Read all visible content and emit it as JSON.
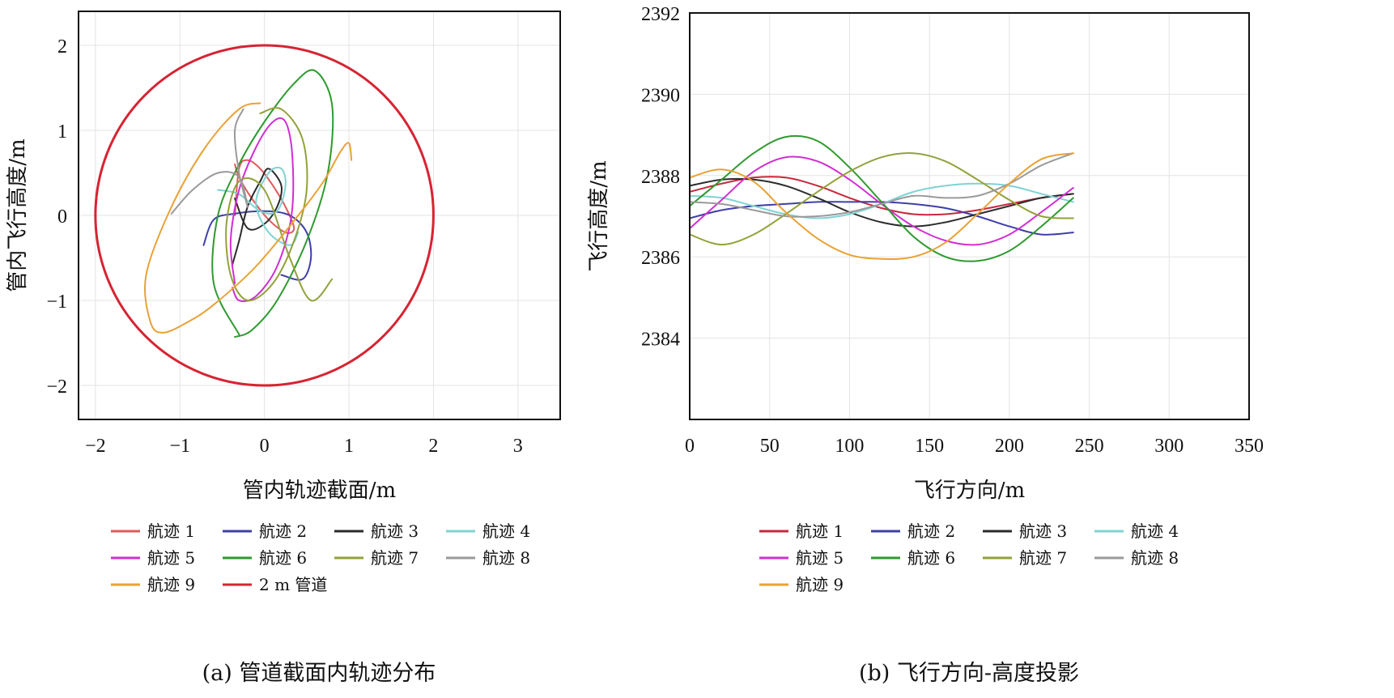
{
  "chart_data": [
    {
      "type": "line",
      "caption": "(a) 管道截面内轨迹分布",
      "xlabel": "管内轨迹截面/m",
      "ylabel": "管内飞行高度/m",
      "xlim": [
        -2.2,
        3.5
      ],
      "ylim": [
        -2.4,
        2.4
      ],
      "xticks": [
        -2,
        -1,
        0,
        1,
        2,
        3
      ],
      "yticks": [
        -2,
        -1,
        0,
        1,
        2
      ],
      "grid": true,
      "legend_position": "bottom",
      "legend": [
        "航迹 1",
        "航迹 2",
        "航迹 3",
        "航迹 4",
        "航迹 5",
        "航迹 6",
        "航迹 7",
        "航迹 8",
        "航迹 9",
        "2 m 管道"
      ],
      "series": [
        {
          "name": "航迹 1",
          "color": "#e05a5a",
          "x": [
            -0.35,
            -0.3,
            -0.2,
            -0.05,
            0.1,
            0.25,
            0.35,
            0.25,
            0.05,
            -0.15,
            -0.3,
            -0.35
          ],
          "y": [
            0.0,
            0.55,
            0.65,
            0.55,
            0.35,
            0.1,
            -0.15,
            -0.2,
            -0.05,
            0.2,
            0.45,
            0.6
          ]
        },
        {
          "name": "航迹 2",
          "color": "#3f3fa8",
          "x": [
            -0.72,
            -0.6,
            -0.35,
            0.0,
            0.3,
            0.5,
            0.55,
            0.45,
            0.2
          ],
          "y": [
            -0.35,
            -0.05,
            0.02,
            0.05,
            0.0,
            -0.2,
            -0.5,
            -0.75,
            -0.7
          ]
        },
        {
          "name": "航迹 3",
          "color": "#2b2b2b",
          "x": [
            -0.38,
            -0.3,
            -0.2,
            -0.05,
            0.05,
            0.2,
            0.15,
            0.0,
            -0.2,
            -0.35
          ],
          "y": [
            -0.58,
            -0.3,
            0.1,
            0.4,
            0.55,
            0.35,
            0.1,
            -0.1,
            -0.15,
            0.2
          ]
        },
        {
          "name": "航迹 4",
          "color": "#7fd3d3",
          "x": [
            -0.55,
            -0.3,
            -0.05,
            0.15,
            0.25,
            0.2,
            0.05,
            -0.1,
            0.05,
            0.3,
            0.4
          ],
          "y": [
            0.3,
            0.25,
            0.05,
            0.05,
            0.35,
            0.55,
            0.5,
            0.15,
            -0.2,
            -0.35,
            -0.2
          ]
        },
        {
          "name": "航迹 5",
          "color": "#d12fd1",
          "x": [
            -0.35,
            -0.4,
            -0.3,
            -0.1,
            0.1,
            0.25,
            0.33,
            0.32,
            0.15,
            -0.1,
            -0.3,
            -0.38
          ],
          "y": [
            -0.8,
            -0.3,
            0.3,
            0.8,
            1.1,
            1.1,
            0.7,
            0.0,
            -0.6,
            -0.95,
            -1.0,
            -0.85
          ]
        },
        {
          "name": "航迹 6",
          "color": "#2e9a2e",
          "x": [
            -0.3,
            -0.6,
            -0.55,
            -0.3,
            0.0,
            0.35,
            0.6,
            0.8,
            0.75,
            0.5,
            0.15,
            -0.15,
            -0.35
          ],
          "y": [
            -1.4,
            -0.8,
            0.0,
            0.6,
            1.1,
            1.55,
            1.7,
            1.3,
            0.5,
            -0.3,
            -1.0,
            -1.35,
            -1.43
          ]
        },
        {
          "name": "航迹 7",
          "color": "#93a13a",
          "x": [
            -0.05,
            0.2,
            0.45,
            0.5,
            0.35,
            0.1,
            -0.2,
            -0.4,
            -0.45,
            -0.3,
            0.0,
            0.3,
            0.55,
            0.8
          ],
          "y": [
            1.2,
            1.25,
            0.9,
            0.3,
            -0.3,
            -0.8,
            -1.0,
            -0.7,
            -0.1,
            0.4,
            0.3,
            -0.5,
            -1.0,
            -0.75
          ]
        },
        {
          "name": "航迹 8",
          "color": "#9a9a9a",
          "x": [
            -1.1,
            -0.85,
            -0.55,
            -0.3,
            -0.2,
            -0.3,
            -0.35,
            -0.25
          ],
          "y": [
            0.02,
            0.3,
            0.5,
            0.45,
            0.1,
            0.5,
            1.0,
            1.25
          ]
        },
        {
          "name": "航迹 9",
          "color": "#e8a236",
          "x": [
            -0.05,
            -0.3,
            -0.7,
            -1.1,
            -1.4,
            -1.35,
            -1.2,
            -0.9,
            -0.6,
            -0.1,
            0.4,
            0.7,
            0.9,
            1.0,
            1.03
          ],
          "y": [
            1.32,
            1.25,
            0.8,
            0.1,
            -0.7,
            -1.25,
            -1.38,
            -1.25,
            -1.05,
            -0.6,
            0.0,
            0.4,
            0.75,
            0.85,
            0.65
          ]
        },
        {
          "name": "2 m 管道",
          "color": "#d62433",
          "shape": "circle",
          "radius": 2
        }
      ]
    },
    {
      "type": "line",
      "caption": "(b) 飞行方向-高度投影",
      "xlabel": "飞行方向/m",
      "ylabel": "飞行高度/m",
      "xlim": [
        0,
        350
      ],
      "ylim": [
        2382,
        2392
      ],
      "xticks": [
        0,
        50,
        100,
        150,
        200,
        250,
        300,
        350
      ],
      "yticks": [
        2384,
        2386,
        2388,
        2390,
        2392
      ],
      "grid": true,
      "legend_position": "bottom",
      "legend": [
        "航迹 1",
        "航迹 2",
        "航迹 3",
        "航迹 4",
        "航迹 5",
        "航迹 6",
        "航迹 7",
        "航迹 8",
        "航迹 9"
      ],
      "x": [
        0,
        20,
        40,
        60,
        80,
        100,
        120,
        140,
        160,
        180,
        200,
        220,
        240
      ],
      "series": [
        {
          "name": "航迹 1",
          "color": "#c8283a",
          "values": [
            2387.6,
            2387.8,
            2387.95,
            2387.95,
            2387.75,
            2387.45,
            2387.2,
            2387.05,
            2387.05,
            2387.15,
            2387.3,
            2387.45,
            2387.55
          ]
        },
        {
          "name": "航迹 2",
          "color": "#3f3fa8",
          "values": [
            2386.95,
            2387.15,
            2387.25,
            2387.3,
            2387.35,
            2387.35,
            2387.35,
            2387.3,
            2387.2,
            2387.0,
            2386.75,
            2386.55,
            2386.6
          ]
        },
        {
          "name": "航迹 3",
          "color": "#2b2b2b",
          "values": [
            2387.75,
            2387.9,
            2387.9,
            2387.75,
            2387.45,
            2387.1,
            2386.85,
            2386.75,
            2386.85,
            2387.05,
            2387.25,
            2387.45,
            2387.55
          ]
        },
        {
          "name": "航迹 4",
          "color": "#7fd3d3",
          "values": [
            2387.5,
            2387.45,
            2387.25,
            2387.05,
            2386.95,
            2387.05,
            2387.3,
            2387.6,
            2387.75,
            2387.8,
            2387.75,
            2387.55,
            2387.35
          ]
        },
        {
          "name": "航迹 5",
          "color": "#d12fd1",
          "values": [
            2386.7,
            2387.4,
            2388.1,
            2388.45,
            2388.35,
            2387.9,
            2387.3,
            2386.75,
            2386.4,
            2386.3,
            2386.55,
            2387.1,
            2387.7
          ]
        },
        {
          "name": "航迹 6",
          "color": "#2e9a2e",
          "values": [
            2387.25,
            2387.9,
            2388.55,
            2388.95,
            2388.85,
            2388.2,
            2387.35,
            2386.5,
            2386.0,
            2385.9,
            2386.15,
            2386.75,
            2387.45
          ]
        },
        {
          "name": "航迹 7",
          "color": "#93a13a",
          "values": [
            2386.55,
            2386.3,
            2386.55,
            2387.05,
            2387.6,
            2388.1,
            2388.45,
            2388.55,
            2388.35,
            2387.9,
            2387.4,
            2387.0,
            2386.95
          ]
        },
        {
          "name": "航迹 8",
          "color": "#9a9a9a",
          "values": [
            2387.35,
            2387.3,
            2387.15,
            2387.0,
            2387.0,
            2387.1,
            2387.3,
            2387.5,
            2387.45,
            2387.5,
            2387.8,
            2388.25,
            2388.55
          ]
        },
        {
          "name": "航迹 9",
          "color": "#e8a236",
          "values": [
            2387.95,
            2388.15,
            2387.85,
            2387.1,
            2386.45,
            2386.05,
            2385.95,
            2386.0,
            2386.35,
            2387.05,
            2387.8,
            2388.4,
            2388.55
          ]
        }
      ]
    }
  ]
}
